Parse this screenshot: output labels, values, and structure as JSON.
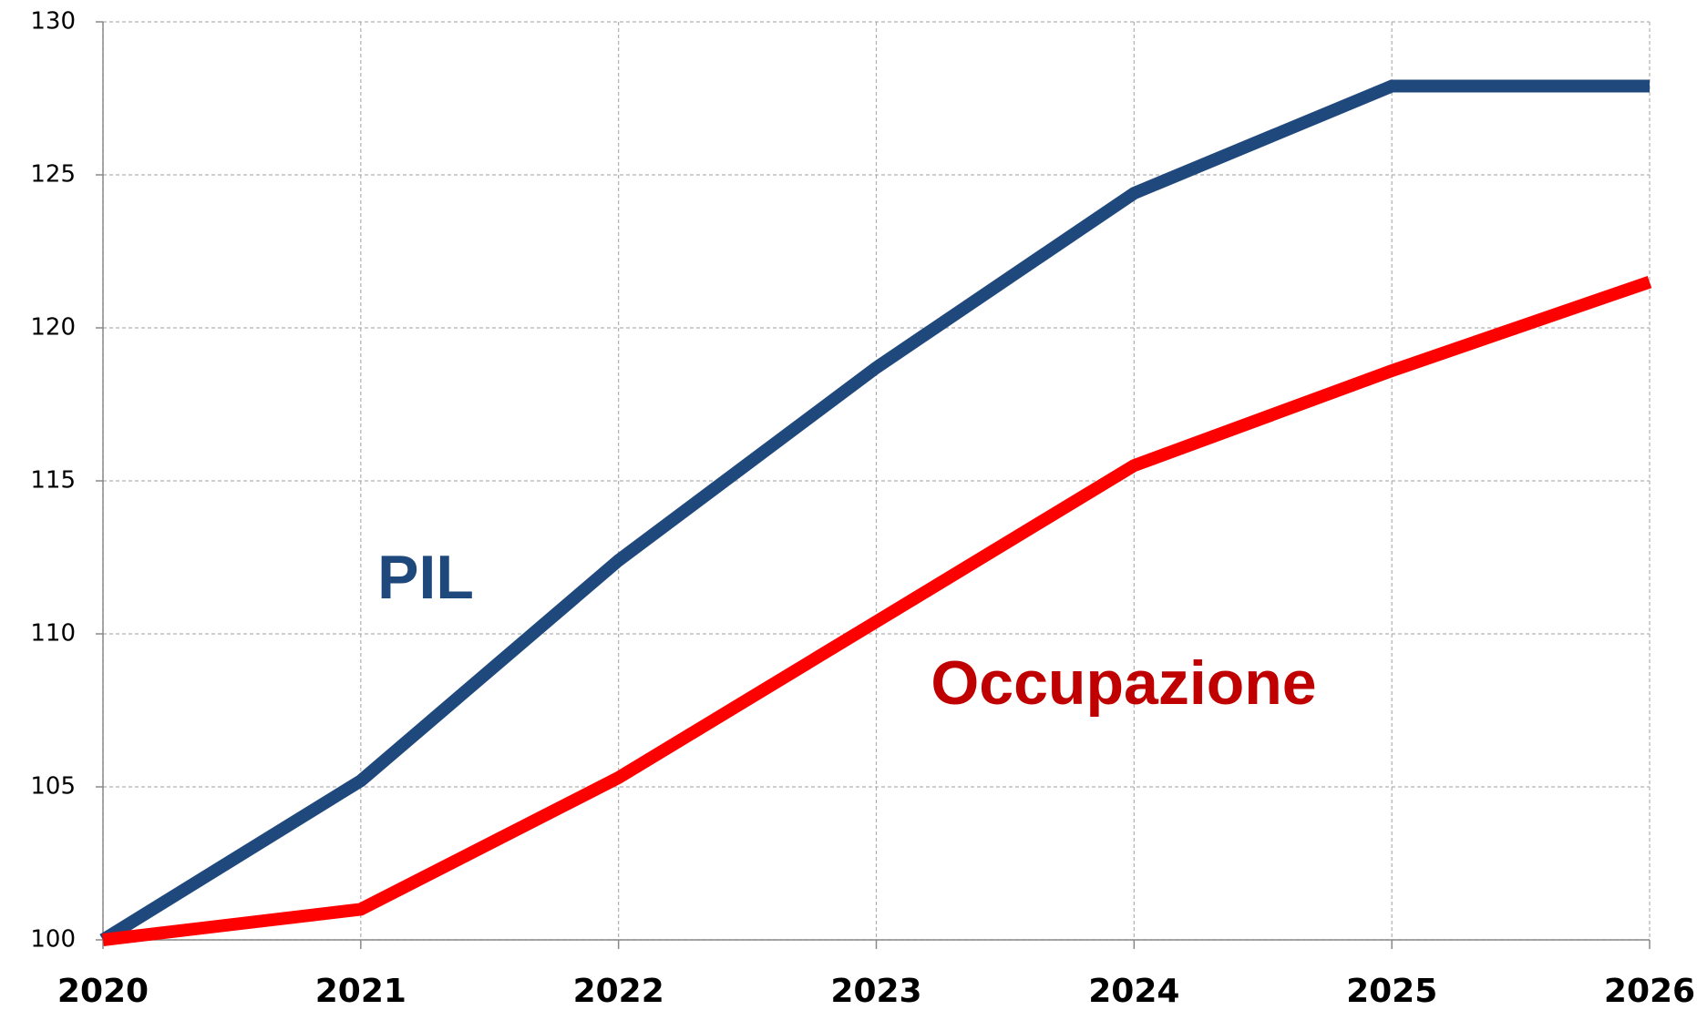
{
  "chart_data": {
    "type": "line",
    "x": [
      2020,
      2021,
      2022,
      2023,
      2024,
      2025,
      2026
    ],
    "series": [
      {
        "name": "PIL",
        "color": "#1f497d",
        "values": [
          100,
          105.2,
          112.4,
          118.7,
          124.4,
          127.9,
          127.9
        ]
      },
      {
        "name": "Occupazione",
        "color": "#ff0000",
        "label_color": "#c00000",
        "values": [
          100,
          101,
          105.3,
          110.4,
          115.5,
          118.6,
          121.5
        ]
      }
    ],
    "xlim": [
      2020,
      2026
    ],
    "xticks": [
      2020,
      2021,
      2022,
      2023,
      2024,
      2025,
      2026
    ],
    "ylim": [
      100,
      130
    ],
    "yticks": [
      100,
      105,
      110,
      115,
      120,
      125,
      130
    ],
    "grid": true
  }
}
